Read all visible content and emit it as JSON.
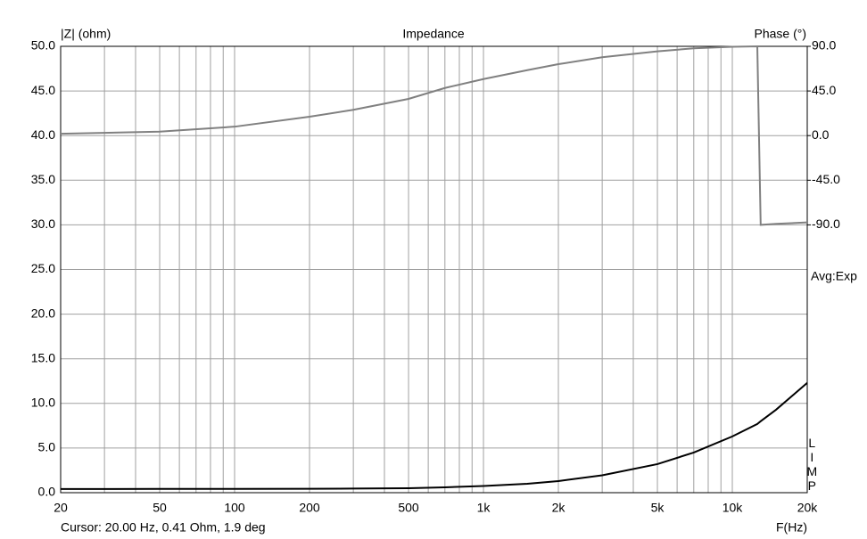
{
  "chart_data": {
    "type": "line",
    "title": "Impedance",
    "ylabel": "|Z| (ohm)",
    "y2label": "Phase (°)",
    "xlabel": "F(Hz)",
    "annotations": [
      "Avg:Exp",
      "LIMP",
      "Cursor: 20.00 Hz, 0.41 Ohm, 1.9 deg"
    ],
    "xscale": "log",
    "grid": true,
    "xlim": [
      20,
      20000
    ],
    "xticks": [
      20,
      50,
      100,
      200,
      500,
      {
        "value": 1000,
        "label": "1k"
      },
      {
        "value": 2000,
        "label": "2k"
      },
      {
        "value": 5000,
        "label": "5k"
      },
      {
        "value": 10000,
        "label": "10k"
      },
      {
        "value": 20000,
        "label": "20k"
      }
    ],
    "xminorticks": [
      30,
      40,
      60,
      70,
      80,
      90,
      300,
      400,
      600,
      700,
      800,
      900,
      3000,
      4000,
      6000,
      7000,
      8000,
      9000
    ],
    "ylim": [
      0,
      50
    ],
    "yticks": [
      {
        "value": 0,
        "label": "0.0"
      },
      {
        "value": 5,
        "label": "5.0"
      },
      {
        "value": 10,
        "label": "10.0"
      },
      {
        "value": 15,
        "label": "15.0"
      },
      {
        "value": 20,
        "label": "20.0"
      },
      {
        "value": 25,
        "label": "25.0"
      },
      {
        "value": 30,
        "label": "30.0"
      },
      {
        "value": 35,
        "label": "35.0"
      },
      {
        "value": 40,
        "label": "40.0"
      },
      {
        "value": 45,
        "label": "45.0"
      },
      {
        "value": 50,
        "label": "50.0"
      }
    ],
    "y2lim": [
      -360,
      90
    ],
    "y2ticks": [
      {
        "value": 90,
        "label": "90.0"
      },
      {
        "value": 45,
        "label": "45.0"
      },
      {
        "value": 0,
        "label": "0.0"
      },
      {
        "value": -45,
        "label": "-45.0"
      },
      {
        "value": -90,
        "label": "-90.0"
      }
    ],
    "x": [
      20,
      50,
      100,
      200,
      300,
      500,
      700,
      1000,
      1500,
      2000,
      3000,
      5000,
      7000,
      10000,
      12600,
      13000,
      15000,
      20000
    ],
    "series": [
      {
        "color": "#000000",
        "values": [
          0.41,
          0.42,
          0.43,
          0.44,
          0.46,
          0.5,
          0.6,
          0.75,
          1.0,
          1.3,
          1.95,
          3.2,
          4.5,
          6.3,
          7.7,
          8.0,
          9.3,
          12.3
        ]
      },
      {
        "color": "#808080",
        "axis": "y2",
        "values": [
          1.9,
          4,
          9,
          19,
          26,
          37,
          48,
          57,
          66,
          72,
          79,
          85,
          88,
          89.6,
          90,
          -90,
          -89,
          -87.5
        ]
      }
    ]
  }
}
